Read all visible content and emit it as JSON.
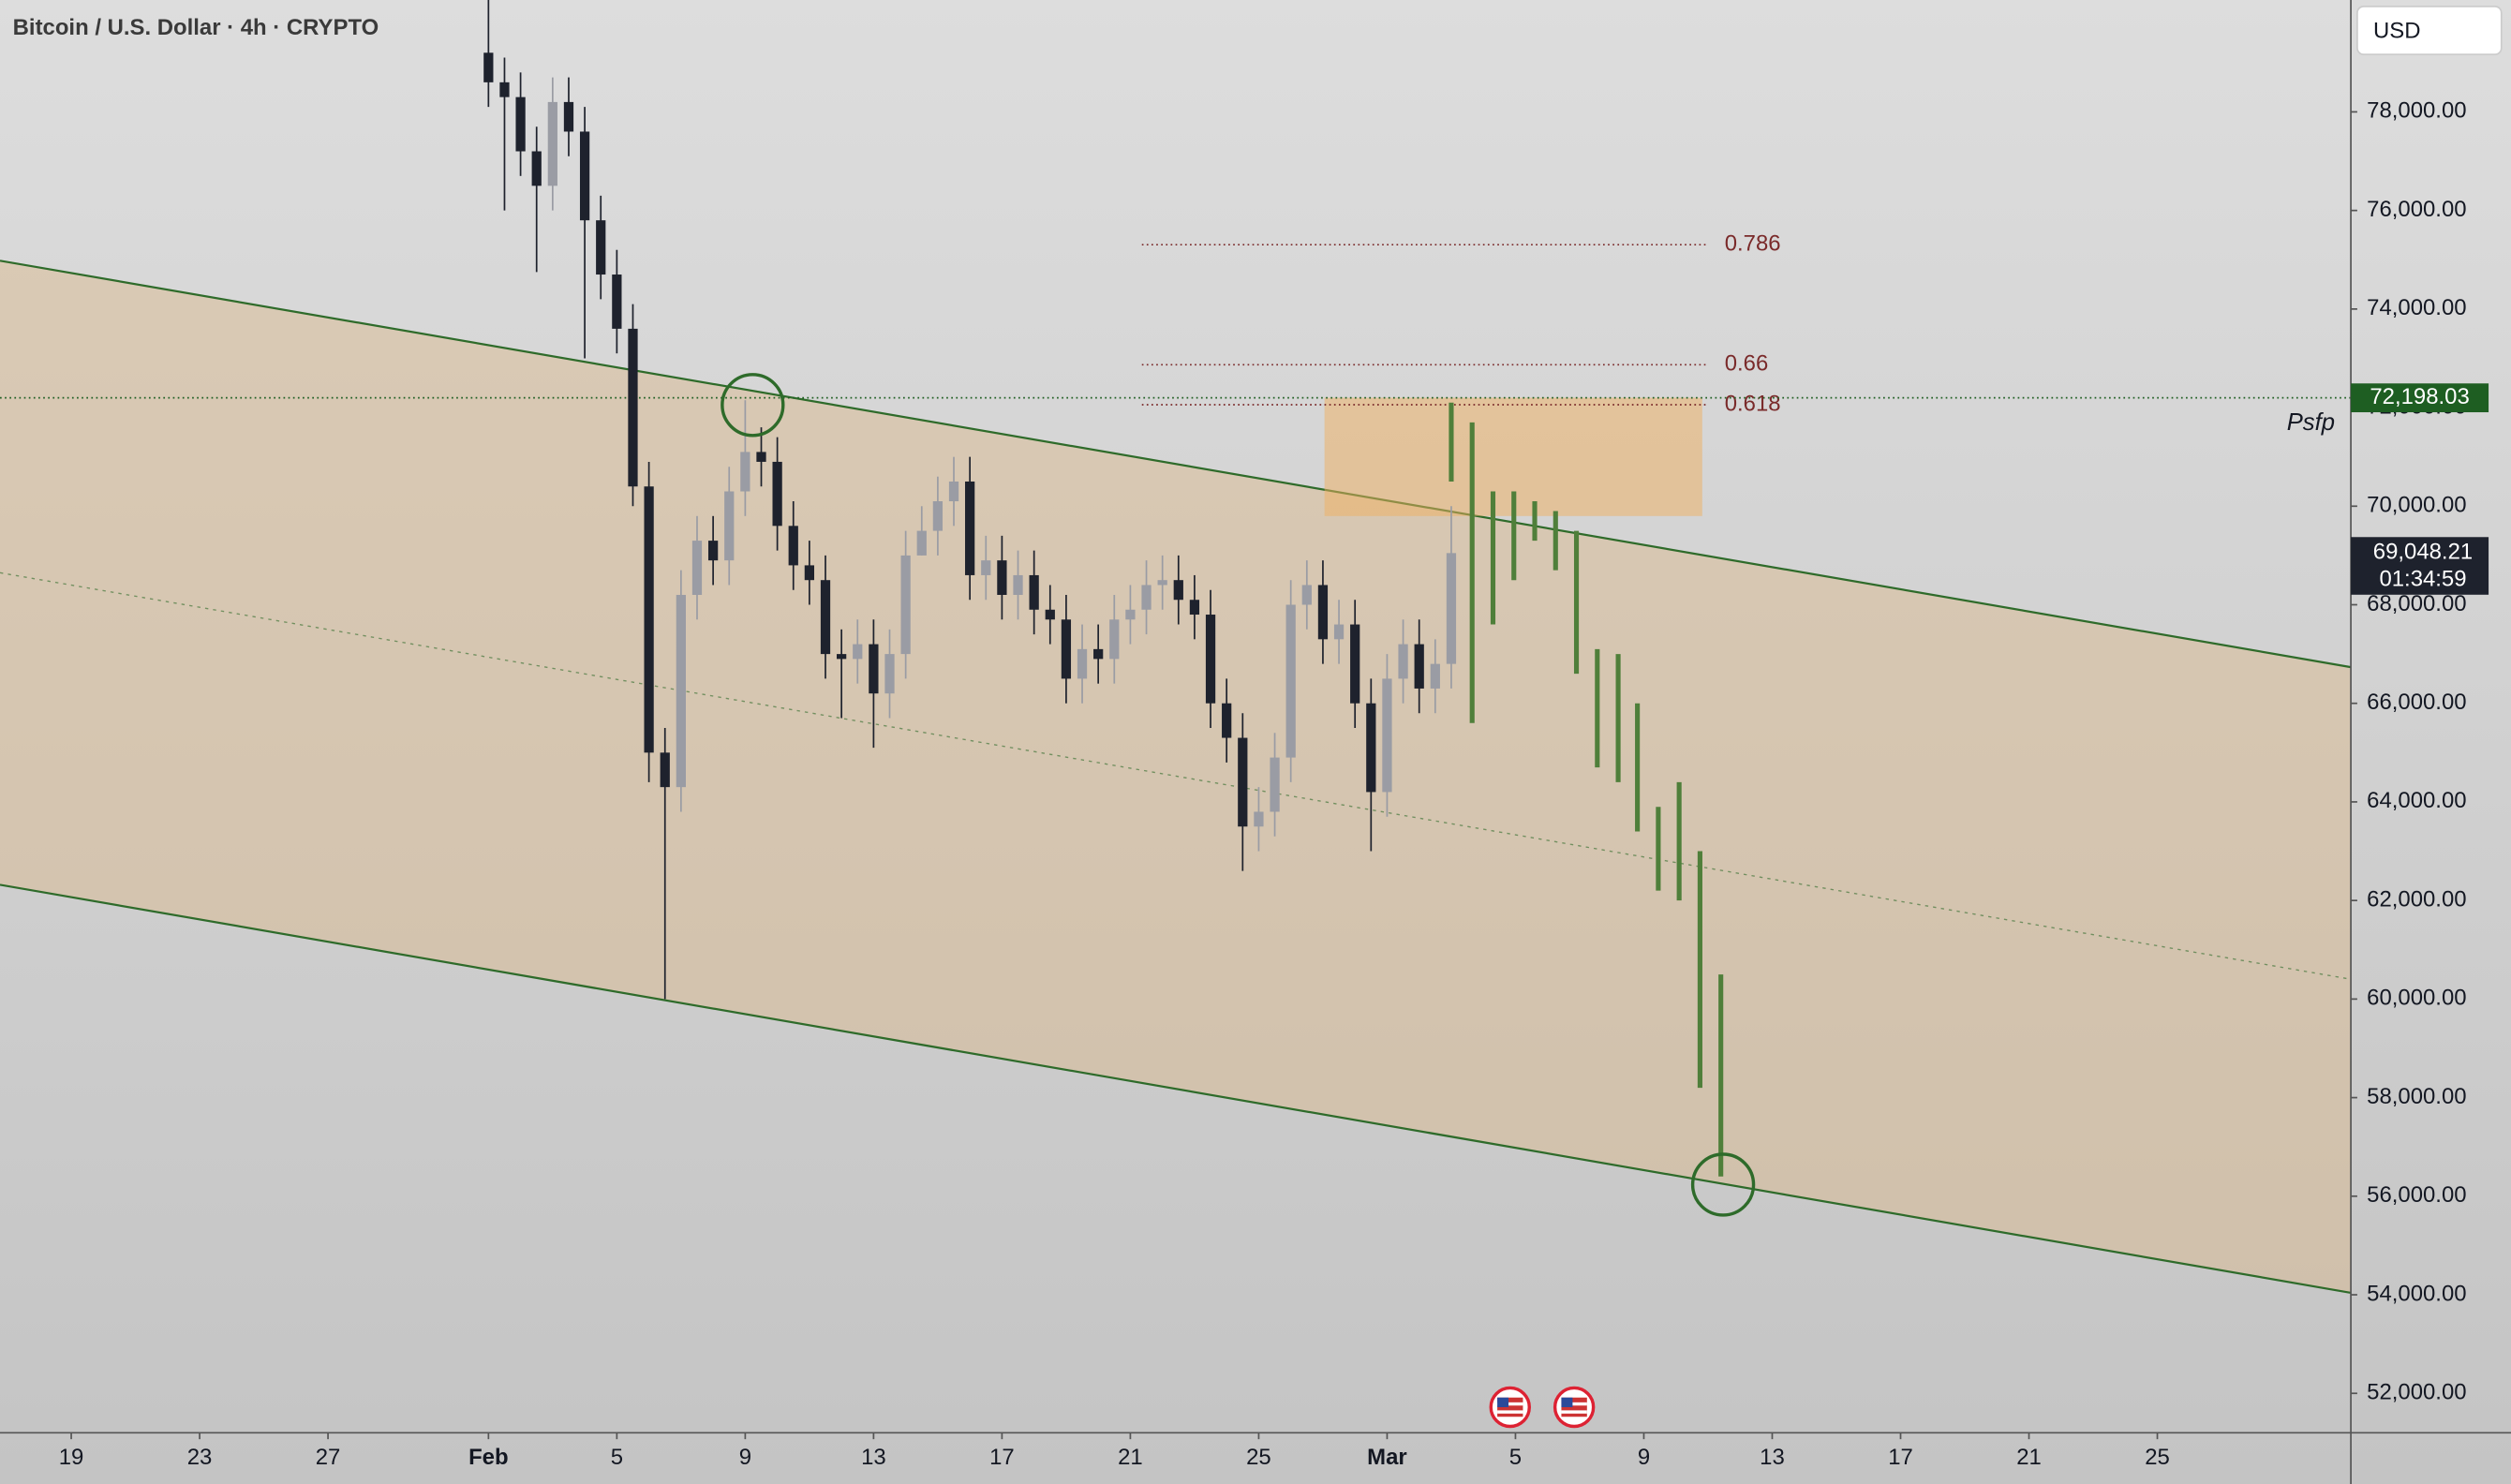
{
  "chart_data": {
    "type": "candlestick",
    "title": "Bitcoin / U.S. Dollar · 4h · CRYPTO",
    "currency": "USD",
    "up_color": "#9a9ca4",
    "down_color": "#1e222d",
    "xlim": [
      16.78,
      90.03
    ],
    "ylim": [
      51200,
      80270
    ],
    "xticks": [
      19,
      23,
      27,
      {
        "value": 32,
        "label": "Feb"
      },
      {
        "value": 36,
        "label": "5"
      },
      {
        "value": 40,
        "label": "9"
      },
      {
        "value": 44,
        "label": "13"
      },
      {
        "value": 48,
        "label": "17"
      },
      {
        "value": 52,
        "label": "21"
      },
      {
        "value": 56,
        "label": "25"
      },
      {
        "value": 60,
        "label": "Mar"
      },
      {
        "value": 64,
        "label": "5"
      },
      {
        "value": 68,
        "label": "9"
      },
      {
        "value": 72,
        "label": "13"
      },
      {
        "value": 76,
        "label": "17"
      },
      {
        "value": 80,
        "label": "21"
      },
      {
        "value": 84,
        "label": "25"
      }
    ],
    "yticks": [
      {
        "value": 52000,
        "label": "52,000.00"
      },
      {
        "value": 54000,
        "label": "54,000.00"
      },
      {
        "value": 56000,
        "label": "56,000.00"
      },
      {
        "value": 58000,
        "label": "58,000.00"
      },
      {
        "value": 60000,
        "label": "60,000.00"
      },
      {
        "value": 62000,
        "label": "62,000.00"
      },
      {
        "value": 64000,
        "label": "64,000.00"
      },
      {
        "value": 66000,
        "label": "66,000.00"
      },
      {
        "value": 68000,
        "label": "68,000.00"
      },
      {
        "value": 70000,
        "label": "70,000.00"
      },
      {
        "value": 72000,
        "label": "72,000.00"
      },
      {
        "value": 74000,
        "label": "74,000.00"
      },
      {
        "value": 76000,
        "label": "76,000.00"
      },
      {
        "value": 78000,
        "label": "78,000.00"
      }
    ],
    "x": [
      32,
      32.5,
      33,
      33.5,
      34,
      34.5,
      35,
      35.5,
      36,
      36.5,
      37,
      37.5,
      38,
      38.5,
      39,
      39.5,
      40,
      40.5,
      41,
      41.5,
      42,
      42.5,
      43,
      43.5,
      44,
      44.5,
      45,
      45.5,
      46,
      46.5,
      47,
      47.5,
      48,
      48.5,
      49,
      49.5,
      50,
      50.5,
      51,
      51.5,
      52,
      52.5,
      53,
      53.5,
      54,
      54.5,
      55,
      55.5,
      56,
      56.5,
      57,
      57.5,
      58,
      58.5,
      59,
      59.5,
      60,
      60.5,
      61,
      61.5,
      62
    ],
    "open": [
      79200,
      78600,
      78300,
      77200,
      76500,
      78200,
      77600,
      75800,
      74700,
      73600,
      70400,
      65000,
      64300,
      68200,
      69300,
      68900,
      70300,
      71100,
      70900,
      69600,
      68800,
      68500,
      67000,
      66900,
      67200,
      66200,
      67000,
      69000,
      69500,
      70100,
      70500,
      68600,
      68900,
      68200,
      68600,
      67900,
      67700,
      66500,
      67100,
      66900,
      67700,
      67900,
      68400,
      68500,
      68100,
      67800,
      66000,
      65300,
      63500,
      63800,
      64900,
      68000,
      68400,
      67300,
      67600,
      66000,
      64200,
      66500,
      67200,
      66300,
      66800
    ],
    "high": [
      80270,
      79100,
      78800,
      77700,
      78700,
      78700,
      78100,
      76300,
      75200,
      74100,
      70900,
      65500,
      68700,
      69800,
      69800,
      70800,
      72150,
      71600,
      71400,
      70100,
      69300,
      69000,
      67500,
      67700,
      67700,
      67500,
      69500,
      70000,
      70600,
      71000,
      71000,
      69400,
      69400,
      69100,
      69100,
      68400,
      68200,
      67600,
      67600,
      68200,
      68400,
      68900,
      69000,
      69000,
      68600,
      68300,
      66500,
      65800,
      64300,
      65400,
      68500,
      68900,
      68900,
      68100,
      68100,
      66500,
      67000,
      67700,
      67700,
      67300,
      70000
    ],
    "low": [
      78100,
      76000,
      76700,
      74750,
      76000,
      77100,
      73000,
      74200,
      73100,
      70000,
      64400,
      60000,
      63800,
      67700,
      68400,
      68400,
      69800,
      70400,
      69100,
      68300,
      68000,
      66500,
      65700,
      66400,
      65100,
      65700,
      66500,
      69000,
      69000,
      69600,
      68100,
      68100,
      67700,
      67700,
      67400,
      67200,
      66000,
      66000,
      66400,
      66400,
      67200,
      67400,
      67900,
      67600,
      67300,
      65500,
      64800,
      62600,
      63000,
      63300,
      64400,
      67500,
      66800,
      66800,
      65500,
      63000,
      63700,
      66000,
      65800,
      65800,
      66300
    ],
    "close": [
      78600,
      78300,
      77200,
      76500,
      78200,
      77600,
      75800,
      74700,
      73600,
      70400,
      65000,
      64300,
      68200,
      69300,
      68900,
      70300,
      71100,
      70900,
      69600,
      68800,
      68500,
      67000,
      66900,
      67200,
      66200,
      67000,
      69000,
      69500,
      70100,
      70500,
      68600,
      68900,
      68200,
      68600,
      67900,
      67700,
      66500,
      67100,
      66900,
      67700,
      67900,
      68400,
      68500,
      68100,
      67800,
      66000,
      65300,
      63500,
      63800,
      64900,
      68000,
      68400,
      67300,
      67600,
      66000,
      64200,
      66500,
      67200,
      66300,
      66800,
      69048.21
    ],
    "channel": {
      "color": "#2e6b2a",
      "fill": "#dcb88a",
      "x": [
        16.78,
        90.03
      ],
      "upper": [
        74980,
        66734
      ],
      "middle": [
        68649,
        60402
      ],
      "lower": [
        62318,
        54040
      ]
    },
    "zone": {
      "color": "#f0b060",
      "x": [
        58.05,
        69.82
      ],
      "price": [
        72200,
        69800
      ]
    },
    "fib": {
      "color": "#7a2a2a",
      "x": [
        52.36,
        69.97
      ],
      "levels": [
        {
          "label": "0.786",
          "price": 75305
        },
        {
          "label": "0.66",
          "price": 72870
        },
        {
          "label": "0.618",
          "price": 72058
        }
      ]
    },
    "projection": {
      "color": "#4f7f3a",
      "x": [
        62,
        62.65,
        63.3,
        63.95,
        64.6,
        65.25,
        65.9,
        66.55,
        67.2,
        67.8,
        68.45,
        69.1,
        69.75,
        70.4
      ],
      "start": [
        72100,
        71700,
        70300,
        70300,
        70100,
        69900,
        69500,
        67100,
        67000,
        66000,
        63900,
        64400,
        63000,
        60500
      ],
      "end": [
        70500,
        65600,
        67600,
        68500,
        69300,
        68700,
        66600,
        64700,
        64400,
        63400,
        62200,
        62000,
        58200,
        56400
      ]
    },
    "psfp": {
      "label": "Psfp",
      "price": 72198.03,
      "price_label": "72,198.03",
      "color": "#1e5e22"
    },
    "last_price": {
      "value": 69048.21,
      "label": "69,048.21",
      "countdown": "01:34:59"
    }
  }
}
